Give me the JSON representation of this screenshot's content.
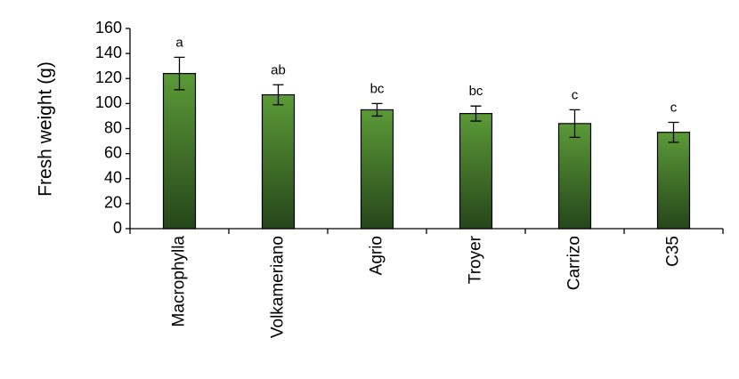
{
  "chart_data": {
    "type": "bar",
    "y_label": "Fresh weight (g)",
    "categories": [
      "Macrophylla",
      "Volkameriano",
      "Agrio",
      "Troyer",
      "Carrizo",
      "C35"
    ],
    "values": [
      124,
      107,
      95,
      92,
      84,
      77
    ],
    "errors": [
      13,
      8,
      5,
      6,
      11,
      8
    ],
    "letters": [
      "a",
      "ab",
      "bc",
      "bc",
      "c",
      "c"
    ],
    "gradient": [
      "#5b9a37",
      "#26461a"
    ],
    "ylim": [
      0,
      160
    ],
    "yticks": [
      0,
      20,
      40,
      60,
      80,
      100,
      120,
      140,
      160
    ],
    "grid": false
  }
}
